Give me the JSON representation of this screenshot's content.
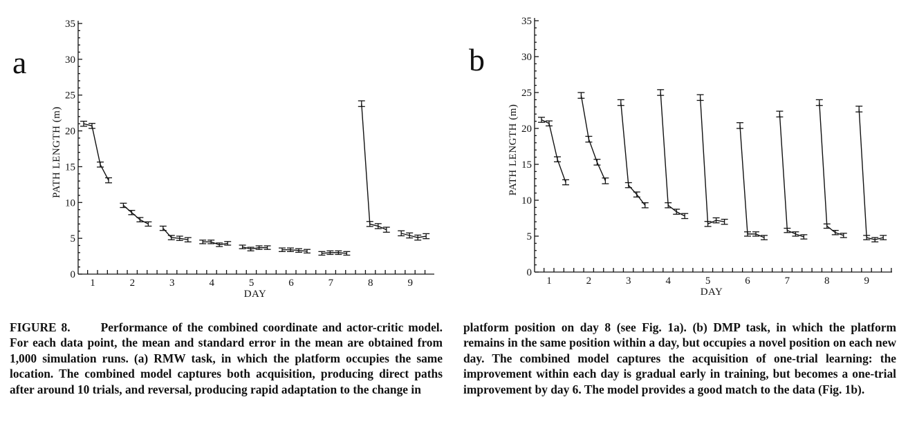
{
  "chart_data": [
    {
      "type": "line",
      "panel_label": "a",
      "xlabel": "DAY",
      "ylabel": "PATH LENGTH (m)",
      "ylim": [
        0,
        35
      ],
      "yticks": [
        "0",
        "5",
        "10",
        "15",
        "20",
        "25",
        "30",
        "35"
      ],
      "xticks": [
        "1",
        "2",
        "3",
        "4",
        "5",
        "6",
        "7",
        "8",
        "9"
      ],
      "error_bars": "standard error of the mean",
      "days": [
        {
          "day": 1,
          "values": [
            21.0,
            20.7,
            15.3,
            13.1
          ],
          "errors": [
            0.35,
            0.35,
            0.35,
            0.35
          ]
        },
        {
          "day": 2,
          "values": [
            9.6,
            8.6,
            7.6,
            7.0
          ],
          "errors": [
            0.3,
            0.3,
            0.3,
            0.3
          ]
        },
        {
          "day": 3,
          "values": [
            6.4,
            5.1,
            5.0,
            4.8
          ],
          "errors": [
            0.3,
            0.3,
            0.3,
            0.3
          ]
        },
        {
          "day": 4,
          "values": [
            4.5,
            4.5,
            4.1,
            4.3
          ],
          "errors": [
            0.25,
            0.25,
            0.25,
            0.25
          ]
        },
        {
          "day": 5,
          "values": [
            3.8,
            3.5,
            3.7,
            3.7
          ],
          "errors": [
            0.25,
            0.25,
            0.25,
            0.25
          ]
        },
        {
          "day": 6,
          "values": [
            3.4,
            3.4,
            3.3,
            3.2
          ],
          "errors": [
            0.25,
            0.25,
            0.25,
            0.25
          ]
        },
        {
          "day": 7,
          "values": [
            2.9,
            3.0,
            3.0,
            2.9
          ],
          "errors": [
            0.25,
            0.25,
            0.25,
            0.25
          ]
        },
        {
          "day": 8,
          "values": [
            23.8,
            7.0,
            6.7,
            6.2
          ],
          "errors": [
            0.4,
            0.35,
            0.35,
            0.35
          ]
        },
        {
          "day": 9,
          "values": [
            5.7,
            5.4,
            5.1,
            5.3
          ],
          "errors": [
            0.35,
            0.35,
            0.35,
            0.35
          ]
        }
      ]
    },
    {
      "type": "line",
      "panel_label": "b",
      "xlabel": "DAY",
      "ylabel": "PATH LENGTH (m)",
      "ylim": [
        0,
        35
      ],
      "yticks": [
        "0",
        "5",
        "10",
        "15",
        "20",
        "25",
        "30",
        "35"
      ],
      "xticks": [
        "1",
        "2",
        "3",
        "4",
        "5",
        "6",
        "7",
        "8",
        "9"
      ],
      "error_bars": "standard error of the mean",
      "days": [
        {
          "day": 1,
          "values": [
            21.2,
            20.7,
            15.7,
            12.5
          ],
          "errors": [
            0.35,
            0.35,
            0.35,
            0.35
          ]
        },
        {
          "day": 2,
          "values": [
            24.6,
            18.5,
            15.3,
            12.7
          ],
          "errors": [
            0.4,
            0.4,
            0.4,
            0.4
          ]
        },
        {
          "day": 3,
          "values": [
            23.6,
            12.1,
            10.8,
            9.3
          ],
          "errors": [
            0.4,
            0.35,
            0.35,
            0.35
          ]
        },
        {
          "day": 4,
          "values": [
            25.0,
            9.3,
            8.4,
            7.8
          ],
          "errors": [
            0.4,
            0.35,
            0.35,
            0.35
          ]
        },
        {
          "day": 5,
          "values": [
            24.3,
            6.7,
            7.2,
            7.0
          ],
          "errors": [
            0.4,
            0.35,
            0.35,
            0.35
          ]
        },
        {
          "day": 6,
          "values": [
            20.4,
            5.3,
            5.3,
            4.8
          ],
          "errors": [
            0.4,
            0.3,
            0.3,
            0.3
          ]
        },
        {
          "day": 7,
          "values": [
            22.0,
            5.8,
            5.3,
            4.9
          ],
          "errors": [
            0.4,
            0.3,
            0.3,
            0.3
          ]
        },
        {
          "day": 8,
          "values": [
            23.6,
            6.4,
            5.5,
            5.1
          ],
          "errors": [
            0.4,
            0.3,
            0.3,
            0.3
          ]
        },
        {
          "day": 9,
          "values": [
            22.7,
            4.8,
            4.5,
            4.8
          ],
          "errors": [
            0.4,
            0.3,
            0.3,
            0.3
          ]
        }
      ]
    }
  ],
  "caption": {
    "figure_label": "FIGURE 8.",
    "left_text": "Performance of the combined coordinate and actor-critic model. For each data point, the mean and standard error in the mean are obtained from 1,000 simulation runs. (a) RMW task, in which the platform occupies the same location. The combined model captures both acquisition, producing direct paths after around 10 trials, and reversal, producing rapid adaptation to the change in",
    "right_text": "platform position on day 8 (see Fig. 1a). (b) DMP task, in which the platform remains in the same position within a day, but occupies a novel position on each new day. The combined model captures the acquisition of one-trial learning: the improvement within each day is gradual early in training, but becomes a one-trial improvement by day 6. The model provides a good match to the data (Fig. 1b)."
  }
}
